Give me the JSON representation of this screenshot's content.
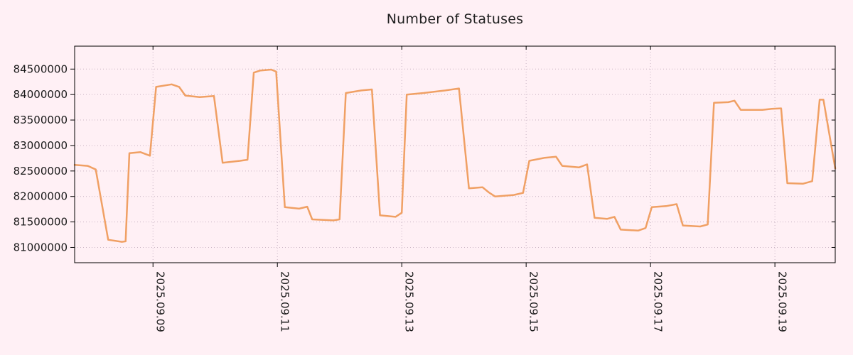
{
  "title": "Number of Statuses",
  "colors": {
    "background": "#fff0f5",
    "line": "#f0a064",
    "grid": "#c9b4c4",
    "axis": "#000000",
    "text": "#1a1a1a"
  },
  "chart_data": {
    "type": "line",
    "title": "Number of Statuses",
    "xlabel": "",
    "ylabel": "",
    "x_unit": "days since 2025.09.08 00:00",
    "xlim": [
      -0.26,
      11.97
    ],
    "ylim": [
      80700000,
      84950000
    ],
    "grid": true,
    "legend": "none",
    "yticks": [
      81000000,
      81500000,
      82000000,
      82500000,
      83000000,
      83500000,
      84000000,
      84500000
    ],
    "xticks": [
      {
        "pos": 1,
        "label": "2025.09.09"
      },
      {
        "pos": 3,
        "label": "2025.09.11"
      },
      {
        "pos": 5,
        "label": "2025.09.13"
      },
      {
        "pos": 7,
        "label": "2025.09.15"
      },
      {
        "pos": 9,
        "label": "2025.09.17"
      },
      {
        "pos": 11,
        "label": "2025.09.19"
      }
    ],
    "points": [
      [
        -0.26,
        82620000
      ],
      [
        -0.05,
        82600000
      ],
      [
        0.08,
        82530000
      ],
      [
        0.28,
        81150000
      ],
      [
        0.5,
        81110000
      ],
      [
        0.56,
        81120000
      ],
      [
        0.62,
        82850000
      ],
      [
        0.8,
        82870000
      ],
      [
        0.95,
        82800000
      ],
      [
        1.05,
        84150000
      ],
      [
        1.3,
        84200000
      ],
      [
        1.42,
        84150000
      ],
      [
        1.52,
        83980000
      ],
      [
        1.75,
        83950000
      ],
      [
        1.98,
        83970000
      ],
      [
        2.12,
        82660000
      ],
      [
        2.4,
        82700000
      ],
      [
        2.52,
        82720000
      ],
      [
        2.62,
        84430000
      ],
      [
        2.72,
        84470000
      ],
      [
        2.9,
        84490000
      ],
      [
        2.98,
        84450000
      ],
      [
        3.12,
        81790000
      ],
      [
        3.35,
        81760000
      ],
      [
        3.48,
        81800000
      ],
      [
        3.56,
        81550000
      ],
      [
        3.9,
        81530000
      ],
      [
        4.0,
        81550000
      ],
      [
        4.1,
        84030000
      ],
      [
        4.35,
        84080000
      ],
      [
        4.52,
        84100000
      ],
      [
        4.65,
        81630000
      ],
      [
        4.9,
        81600000
      ],
      [
        5.0,
        81680000
      ],
      [
        5.08,
        84000000
      ],
      [
        5.35,
        84030000
      ],
      [
        5.7,
        84080000
      ],
      [
        5.92,
        84120000
      ],
      [
        6.08,
        82160000
      ],
      [
        6.3,
        82180000
      ],
      [
        6.4,
        82080000
      ],
      [
        6.5,
        82000000
      ],
      [
        6.8,
        82030000
      ],
      [
        6.95,
        82070000
      ],
      [
        7.05,
        82700000
      ],
      [
        7.3,
        82760000
      ],
      [
        7.48,
        82780000
      ],
      [
        7.58,
        82600000
      ],
      [
        7.85,
        82570000
      ],
      [
        7.98,
        82630000
      ],
      [
        8.1,
        81580000
      ],
      [
        8.3,
        81560000
      ],
      [
        8.42,
        81600000
      ],
      [
        8.52,
        81350000
      ],
      [
        8.8,
        81330000
      ],
      [
        8.92,
        81380000
      ],
      [
        9.02,
        81790000
      ],
      [
        9.25,
        81810000
      ],
      [
        9.42,
        81850000
      ],
      [
        9.52,
        81430000
      ],
      [
        9.8,
        81410000
      ],
      [
        9.92,
        81450000
      ],
      [
        10.02,
        83840000
      ],
      [
        10.25,
        83850000
      ],
      [
        10.35,
        83880000
      ],
      [
        10.45,
        83700000
      ],
      [
        10.8,
        83700000
      ],
      [
        10.95,
        83720000
      ],
      [
        11.1,
        83730000
      ],
      [
        11.2,
        82260000
      ],
      [
        11.45,
        82250000
      ],
      [
        11.6,
        82300000
      ],
      [
        11.72,
        83900000
      ],
      [
        11.78,
        83900000
      ],
      [
        11.97,
        82550000
      ]
    ]
  }
}
